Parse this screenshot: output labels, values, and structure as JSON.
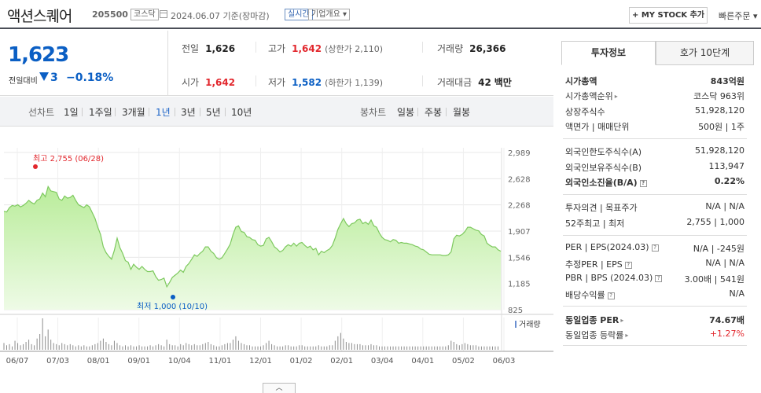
{
  "header": {
    "title": "액션스퀘어",
    "code": "205500",
    "market": "코스닥",
    "date_text": "2024.06.07  기준(장마감)",
    "realtime_label": "실시간",
    "overview_label": "기업개요",
    "mystock_label": "+ MY STOCK 추가",
    "quick_order_label": "빠른주문"
  },
  "summary": {
    "price": "1,623",
    "prev_label": "전일대비",
    "change": "3",
    "change_rate": "−0.18%",
    "prev_close": {
      "label": "전일",
      "value": "1,626"
    },
    "high": {
      "label": "고가",
      "value": "1,642",
      "sub_label": "(상한가",
      "sub_value": "2,110)"
    },
    "volume": {
      "label": "거래량",
      "value": "26,366"
    },
    "open": {
      "label": "시가",
      "value": "1,642"
    },
    "low": {
      "label": "저가",
      "value": "1,582",
      "sub_label": "(하한가",
      "sub_value": "1,139)"
    },
    "amount": {
      "label": "거래대금",
      "value": "42",
      "unit": "백만"
    }
  },
  "period_bar": {
    "line_label": "선차트",
    "line_periods": [
      "1일",
      "1주일",
      "3개월",
      "1년",
      "3년",
      "5년",
      "10년"
    ],
    "active_period": "1년",
    "candle_label": "봉차트",
    "candle_periods": [
      "일봉",
      "주봉",
      "월봉"
    ]
  },
  "chart_data": {
    "type": "area",
    "x_tick_labels": [
      "06/07",
      "07/03",
      "08/01",
      "09/01",
      "10/04",
      "11/01",
      "12/01",
      "01/02",
      "02/01",
      "03/04",
      "04/01",
      "05/02",
      "06/03"
    ],
    "y_tick_labels": [
      "2,989",
      "2,628",
      "2,268",
      "1,907",
      "1,546",
      "1,185",
      "825"
    ],
    "ylim": [
      825,
      2989
    ],
    "values": [
      2180,
      2170,
      2230,
      2260,
      2250,
      2270,
      2240,
      2260,
      2290,
      2330,
      2300,
      2280,
      2330,
      2350,
      2430,
      2380,
      2520,
      2460,
      2450,
      2440,
      2350,
      2330,
      2390,
      2360,
      2370,
      2400,
      2330,
      2270,
      2250,
      2230,
      2270,
      2240,
      2160,
      2080,
      1960,
      1860,
      1690,
      1610,
      1560,
      1520,
      1640,
      1810,
      1680,
      1600,
      1500,
      1480,
      1380,
      1450,
      1410,
      1380,
      1420,
      1380,
      1350,
      1350,
      1360,
      1280,
      1230,
      1240,
      1260,
      1140,
      1200,
      1270,
      1300,
      1330,
      1370,
      1340,
      1420,
      1460,
      1520,
      1580,
      1560,
      1600,
      1630,
      1690,
      1690,
      1630,
      1600,
      1540,
      1520,
      1540,
      1600,
      1660,
      1730,
      1860,
      1960,
      1980,
      1900,
      1890,
      1830,
      1820,
      1790,
      1780,
      1720,
      1700,
      1710,
      1800,
      1820,
      1760,
      1690,
      1660,
      1620,
      1640,
      1690,
      1720,
      1700,
      1740,
      1700,
      1740,
      1750,
      1710,
      1680,
      1700,
      1650,
      1670,
      1580,
      1630,
      1610,
      1640,
      1660,
      1710,
      1810,
      1930,
      2010,
      2080,
      2010,
      1970,
      2010,
      2020,
      2060,
      2070,
      2010,
      2030,
      2000,
      2060,
      1980,
      1960,
      1880,
      1820,
      1790,
      1780,
      1760,
      1790,
      1780,
      1740,
      1750,
      1740,
      1740,
      1730,
      1720,
      1700,
      1690,
      1660,
      1650,
      1620,
      1590,
      1580,
      1580,
      1580,
      1580,
      1570,
      1570,
      1580,
      1620,
      1800,
      1850,
      1840,
      1860,
      1900,
      1960,
      1960,
      1940,
      1920,
      1910,
      1860,
      1840,
      1740,
      1710,
      1690,
      1690,
      1650,
      1630
    ],
    "volume_values": [
      6,
      4,
      5,
      3,
      8,
      6,
      4,
      5,
      7,
      9,
      5,
      4,
      10,
      14,
      28,
      12,
      18,
      9,
      6,
      5,
      4,
      6,
      5,
      4,
      5,
      4,
      3,
      4,
      3,
      4,
      3,
      3,
      4,
      5,
      6,
      8,
      10,
      7,
      5,
      4,
      8,
      6,
      4,
      3,
      4,
      3,
      4,
      3,
      3,
      4,
      3,
      3,
      3,
      4,
      3,
      4,
      5,
      4,
      3,
      9,
      5,
      4,
      4,
      3,
      5,
      4,
      6,
      5,
      4,
      5,
      4,
      4,
      5,
      6,
      7,
      5,
      4,
      3,
      3,
      4,
      5,
      6,
      6,
      9,
      12,
      8,
      6,
      5,
      4,
      4,
      3,
      3,
      3,
      3,
      4,
      6,
      8,
      5,
      4,
      3,
      3,
      3,
      4,
      4,
      3,
      3,
      3,
      4,
      4,
      3,
      3,
      3,
      3,
      3,
      4,
      3,
      3,
      3,
      4,
      4,
      8,
      12,
      15,
      10,
      7,
      6,
      6,
      5,
      5,
      5,
      4,
      4,
      4,
      5,
      4,
      4,
      3,
      3,
      3,
      3,
      3,
      3,
      3,
      3,
      3,
      3,
      3,
      3,
      3,
      3,
      3,
      3,
      3,
      3,
      3,
      3,
      3,
      3,
      3,
      3,
      3,
      4,
      8,
      7,
      5,
      4,
      5,
      6,
      5,
      4,
      4,
      4,
      3,
      3,
      3,
      3,
      3,
      3,
      3,
      3
    ],
    "high_annotation": "최고 2,755 (06/28)",
    "high_value": 2755,
    "low_annotation": "최저 1,000 (10/10)",
    "low_value": 1000,
    "volume_label": "거래량",
    "grid": true,
    "line_color": "#7dc95e"
  },
  "right_panel": {
    "tab_active": "투자정보",
    "tab_other": "호가 10단계",
    "market_cap": {
      "label": "시가총액",
      "value": "843억원"
    },
    "market_cap_rank": {
      "label": "시가총액순위",
      "value": "코스닥 963위"
    },
    "shares": {
      "label": "상장주식수",
      "value": "51,928,120"
    },
    "face_value": {
      "label": "액면가 | 매매단위",
      "value": "500원 | 1주"
    },
    "foreign_limit": {
      "label": "외국인한도주식수(A)",
      "value": "51,928,120"
    },
    "foreign_hold": {
      "label": "외국인보유주식수(B)",
      "value": "113,947"
    },
    "foreign_ratio": {
      "label": "외국인소진율(B/A)",
      "value": "0.22%"
    },
    "opinion": {
      "label": "투자의견 | 목표주가",
      "value": "N/A | N/A"
    },
    "week52": {
      "label": "52주최고 | 최저",
      "value": "2,755 | 1,000"
    },
    "per_eps": {
      "label": "PER | EPS(2024.03)",
      "value": "N/A | -245원"
    },
    "est_per": {
      "label": "추정PER | EPS",
      "value": "N/A | N/A"
    },
    "pbr_bps": {
      "label": "PBR | BPS (2024.03)",
      "value": "3.00배 | 541원"
    },
    "dividend": {
      "label": "배당수익률",
      "value": "N/A"
    },
    "sector_per": {
      "label": "동일업종 PER",
      "value": "74.67배"
    },
    "sector_rate": {
      "label": "동일업종 등락률",
      "value": "+1.27%"
    }
  },
  "collapse_label": "︿"
}
